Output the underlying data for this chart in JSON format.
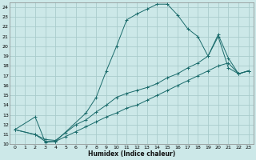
{
  "xlabel": "Humidex (Indice chaleur)",
  "bg_color": "#cce8e8",
  "grid_color": "#aacccc",
  "line_color": "#1a6b6b",
  "xlim": [
    -0.5,
    23.5
  ],
  "ylim": [
    10,
    24.5
  ],
  "xticks": [
    0,
    1,
    2,
    3,
    4,
    5,
    6,
    7,
    8,
    9,
    10,
    11,
    12,
    13,
    14,
    15,
    16,
    17,
    18,
    19,
    20,
    21,
    22,
    23
  ],
  "yticks": [
    10,
    11,
    12,
    13,
    14,
    15,
    16,
    17,
    18,
    19,
    20,
    21,
    22,
    23,
    24
  ],
  "line1_x": [
    0,
    2,
    3,
    4,
    7,
    8,
    9,
    10,
    11,
    12,
    13,
    14,
    15,
    16,
    17,
    18,
    19,
    20,
    21,
    22,
    23
  ],
  "line1_y": [
    11.5,
    12.8,
    10.2,
    10.3,
    13.2,
    14.8,
    17.5,
    20.0,
    22.7,
    23.3,
    23.8,
    24.3,
    24.3,
    23.2,
    21.8,
    21.0,
    19.0,
    21.0,
    17.8,
    17.2,
    17.5
  ],
  "line2_x": [
    0,
    2,
    3,
    4,
    5,
    6,
    7,
    8,
    9,
    10,
    11,
    12,
    13,
    14,
    15,
    16,
    17,
    18,
    19,
    20,
    21,
    22,
    23
  ],
  "line2_y": [
    11.5,
    11.0,
    10.5,
    10.4,
    11.2,
    12.0,
    12.5,
    13.3,
    14.0,
    14.8,
    15.2,
    15.5,
    15.8,
    16.2,
    16.8,
    17.2,
    17.8,
    18.3,
    19.0,
    21.2,
    18.8,
    17.2,
    17.5
  ],
  "line3_x": [
    0,
    2,
    3,
    4,
    5,
    6,
    7,
    8,
    9,
    10,
    11,
    12,
    13,
    14,
    15,
    16,
    17,
    18,
    19,
    20,
    21,
    22,
    23
  ],
  "line3_y": [
    11.5,
    11.0,
    10.3,
    10.3,
    10.8,
    11.3,
    11.8,
    12.3,
    12.8,
    13.2,
    13.7,
    14.0,
    14.5,
    15.0,
    15.5,
    16.0,
    16.5,
    17.0,
    17.5,
    18.0,
    18.3,
    17.2,
    17.5
  ]
}
